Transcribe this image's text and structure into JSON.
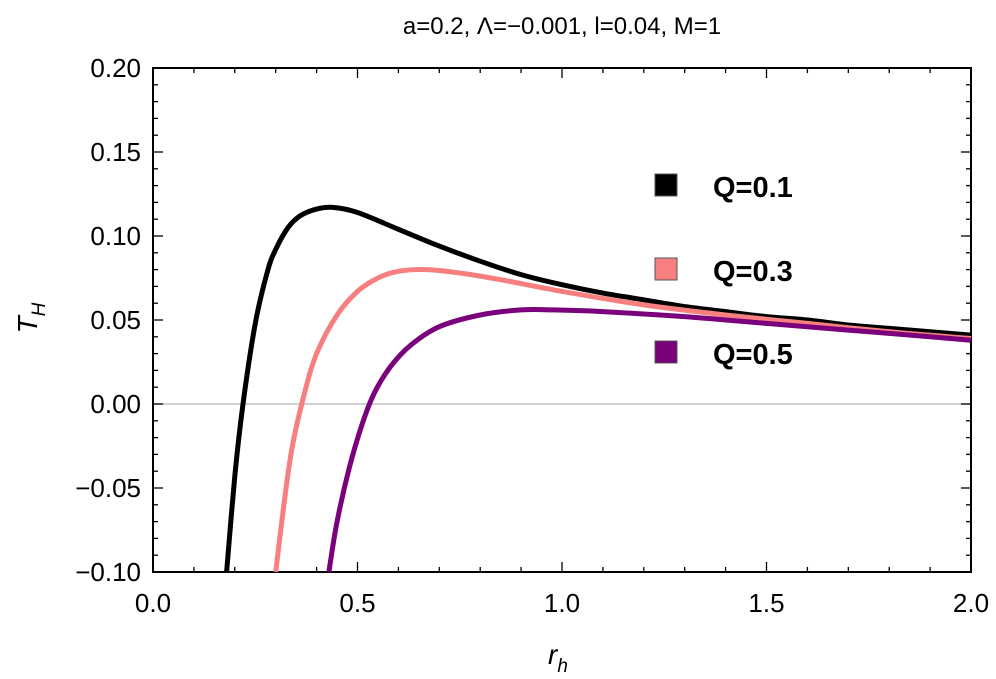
{
  "chart_data": {
    "type": "line",
    "title": "a=0.2,   Λ=−0.001, l=0.04, M=1",
    "xlabel": {
      "main": "r",
      "sub": "h"
    },
    "ylabel": {
      "main": "T",
      "sub": "H"
    },
    "xlim": [
      0.0,
      2.0
    ],
    "ylim": [
      -0.1,
      0.2
    ],
    "xticks": [
      0.0,
      0.5,
      1.0,
      1.5,
      2.0
    ],
    "xtick_labels": [
      "0.0",
      "0.5",
      "1.0",
      "1.5",
      "2.0"
    ],
    "yticks": [
      -0.1,
      -0.05,
      0.0,
      0.05,
      0.1,
      0.15,
      0.2
    ],
    "ytick_labels": [
      "−0.10",
      "−0.05",
      "0.00",
      "0.05",
      "0.10",
      "0.15",
      "0.20"
    ],
    "grid": false,
    "zero_line": true,
    "legend_position": "right",
    "series": [
      {
        "name": "Q=0.1",
        "color": "#000000",
        "x": [
          0.18,
          0.2,
          0.22,
          0.25,
          0.28,
          0.3,
          0.33,
          0.36,
          0.4,
          0.44,
          0.5,
          0.6,
          0.7,
          0.8,
          0.9,
          1.0,
          1.1,
          1.2,
          1.3,
          1.4,
          1.5,
          1.6,
          1.7,
          1.8,
          1.9,
          2.0
        ],
        "values": [
          -0.1,
          -0.043,
          0.0,
          0.048,
          0.079,
          0.092,
          0.105,
          0.112,
          0.116,
          0.117,
          0.114,
          0.104,
          0.094,
          0.085,
          0.077,
          0.071,
          0.066,
          0.062,
          0.058,
          0.055,
          0.052,
          0.05,
          0.047,
          0.045,
          0.043,
          0.041
        ]
      },
      {
        "name": "Q=0.3",
        "color": "#f77f7f",
        "x": [
          0.3,
          0.32,
          0.34,
          0.37,
          0.4,
          0.45,
          0.5,
          0.55,
          0.6,
          0.67,
          0.75,
          0.85,
          1.0,
          1.2,
          1.4,
          1.6,
          1.8,
          2.0
        ],
        "values": [
          -0.1,
          -0.06,
          -0.026,
          0.006,
          0.03,
          0.053,
          0.067,
          0.075,
          0.079,
          0.08,
          0.078,
          0.074,
          0.067,
          0.059,
          0.053,
          0.048,
          0.043,
          0.039
        ]
      },
      {
        "name": "Q=0.5",
        "color": "#7b007b",
        "x": [
          0.43,
          0.45,
          0.48,
          0.51,
          0.54,
          0.58,
          0.63,
          0.7,
          0.8,
          0.9,
          0.98,
          1.1,
          1.3,
          1.5,
          1.7,
          1.9,
          2.0
        ],
        "values": [
          -0.1,
          -0.07,
          -0.038,
          -0.013,
          0.006,
          0.022,
          0.035,
          0.046,
          0.053,
          0.056,
          0.056,
          0.055,
          0.052,
          0.048,
          0.044,
          0.04,
          0.038
        ]
      }
    ]
  }
}
